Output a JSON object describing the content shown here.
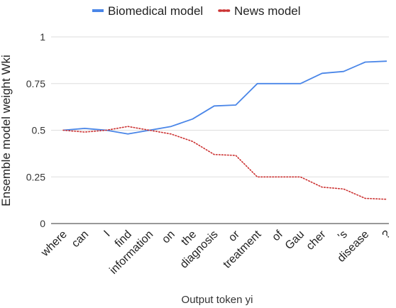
{
  "chart_data": {
    "type": "line",
    "categories": [
      "where",
      "can",
      "I",
      "find",
      "information",
      "on",
      "the",
      "diagnosis",
      "or",
      "treatment",
      "of",
      "Gau",
      "cher",
      "'s",
      "disease",
      "?"
    ],
    "series": [
      {
        "name": "Biomedical model",
        "color": "#4a86e8",
        "style": "solid",
        "values": [
          0.5,
          0.51,
          0.5,
          0.48,
          0.5,
          0.52,
          0.56,
          0.63,
          0.635,
          0.75,
          0.75,
          0.75,
          0.805,
          0.815,
          0.865,
          0.87
        ]
      },
      {
        "name": "News model",
        "color": "#cc3333",
        "style": "dotted",
        "values": [
          0.5,
          0.49,
          0.5,
          0.52,
          0.5,
          0.48,
          0.44,
          0.37,
          0.365,
          0.25,
          0.25,
          0.25,
          0.195,
          0.185,
          0.135,
          0.13
        ]
      }
    ],
    "xlabel": "Output token yi",
    "ylabel": "Ensemble model weight  Wki",
    "ylim": [
      0,
      1
    ],
    "yticks": [
      0,
      0.25,
      0.5,
      0.75,
      1
    ],
    "ytick_labels": [
      "0",
      "0.25",
      "0.5",
      "0.75",
      "1"
    ],
    "grid": true,
    "legend_position": "top"
  }
}
